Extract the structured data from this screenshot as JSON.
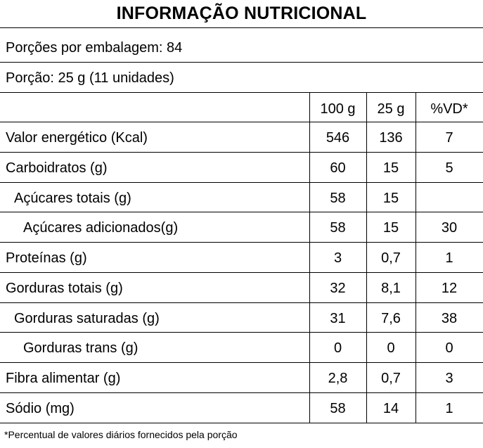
{
  "title": "INFORMAÇÃO NUTRICIONAL",
  "portions_per_package": "Porções por embalagem: 84",
  "portion_size": "Porção: 25 g (11 unidades)",
  "columns": [
    "100 g",
    "25 g",
    "%VD*"
  ],
  "rows": [
    {
      "label": "Valor energético (Kcal)",
      "indent": 0,
      "per100": "546",
      "per25": "136",
      "vd": "7"
    },
    {
      "label": "Carboidratos (g)",
      "indent": 0,
      "per100": "60",
      "per25": "15",
      "vd": "5"
    },
    {
      "label": "Açúcares totais (g)",
      "indent": 1,
      "per100": "58",
      "per25": "15",
      "vd": ""
    },
    {
      "label": "Açúcares adicionados(g)",
      "indent": 2,
      "per100": "58",
      "per25": "15",
      "vd": "30"
    },
    {
      "label": "Proteínas (g)",
      "indent": 0,
      "per100": "3",
      "per25": "0,7",
      "vd": "1"
    },
    {
      "label": "Gorduras totais (g)",
      "indent": 0,
      "per100": "32",
      "per25": "8,1",
      "vd": "12"
    },
    {
      "label": "Gorduras saturadas (g)",
      "indent": 1,
      "per100": "31",
      "per25": "7,6",
      "vd": "38"
    },
    {
      "label": "Gorduras trans (g)",
      "indent": 2,
      "per100": "0",
      "per25": "0",
      "vd": "0"
    },
    {
      "label": "Fibra alimentar (g)",
      "indent": 0,
      "per100": "2,8",
      "per25": "0,7",
      "vd": "3"
    },
    {
      "label": "Sódio (mg)",
      "indent": 0,
      "per100": "58",
      "per25": "14",
      "vd": "1"
    }
  ],
  "footnote": "*Percentual de valores diários fornecidos pela porção"
}
